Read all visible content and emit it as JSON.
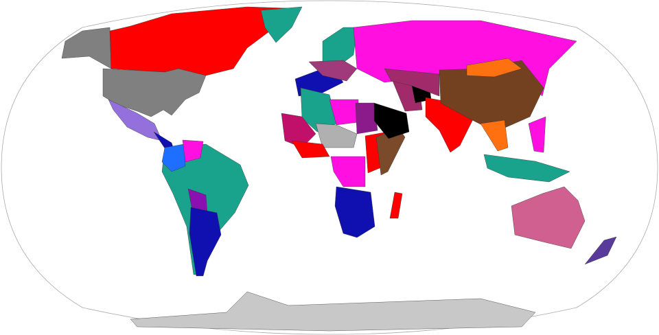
{
  "map": {
    "projection": "robinson",
    "ocean_color": "#ffffff",
    "outline_color": "#aaaaaa",
    "fills": {
      "alaska": "#808080",
      "usa": "#808080",
      "canada": "#ff0000",
      "greenland": "#1aa38c",
      "mexico": "#9370db",
      "central_america": "#1010b0",
      "colombia": "#1e6eff",
      "venezuela": "#ff10e0",
      "south_america": "#1aa38c",
      "bolivia": "#8b10b0",
      "southern_cone": "#1010b0",
      "europe_north": "#1aa38c",
      "europe_west": "#1010b0",
      "europe_central": "#a03a7a",
      "russia": "#ff10e0",
      "algeria": "#1aa38c",
      "egypt_libya": "#ff10e0",
      "sudan": "#8b1a8b",
      "west_africa": "#c0106a",
      "sahel": "#b0b0b0",
      "nigeria": "#ff0000",
      "central_africa": "#ff10e0",
      "east_africa": "#ff0000",
      "horn": "#7a4a2a",
      "southern_africa": "#1010b0",
      "madagascar": "#ff0000",
      "saudi": "#000000",
      "iran": "#a02a6a",
      "afghanistan": "#000000",
      "central_asia": "#a02a6a",
      "india": "#ff0000",
      "china": "#734020",
      "mongolia": "#ff7010",
      "southeast_asia": "#1aa38c",
      "indochina": "#ff7010",
      "philippines": "#ff10e0",
      "australia": "#d06090",
      "new_zealand": "#5a3a9a",
      "antarctica": "#c8c8c8"
    }
  }
}
